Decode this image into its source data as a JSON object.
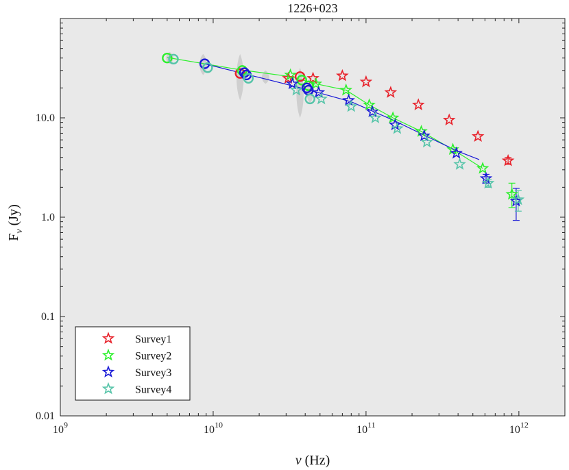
{
  "chart_data": {
    "type": "scatter",
    "title": "1226+023",
    "xlabel": "ν (Hz)",
    "ylabel": "Fν (Jy)",
    "xscale": "log",
    "yscale": "log",
    "xlim": [
      1000000000.0,
      2000000000000.0
    ],
    "ylim": [
      0.01,
      100
    ],
    "x_ticks": [
      {
        "value": 1000000000.0,
        "base": "10",
        "exp": "9"
      },
      {
        "value": 10000000000.0,
        "base": "10",
        "exp": "10"
      },
      {
        "value": 100000000000.0,
        "base": "10",
        "exp": "11"
      },
      {
        "value": 1000000000000.0,
        "base": "10",
        "exp": "12"
      }
    ],
    "y_ticks": [
      {
        "value": 0.01,
        "label": "0.01"
      },
      {
        "value": 0.1,
        "label": "0.1"
      },
      {
        "value": 1,
        "label": "1.0"
      },
      {
        "value": 10,
        "label": "10.0"
      }
    ],
    "legend_position": "bottom-left",
    "colors": {
      "Survey1": "#e8212a",
      "Survey2": "#2cf02c",
      "Survey3": "#1a1ad6",
      "Survey4": "#55c4a8",
      "band": "#cfcfcf",
      "plot_bg": "#e9e9e9"
    },
    "variability_bands": [
      {
        "x": 5200000000.0,
        "low": 35,
        "high": 46
      },
      {
        "x": 8600000000.0,
        "low": 27,
        "high": 44
      },
      {
        "x": 15000000000.0,
        "low": 15,
        "high": 44
      },
      {
        "x": 22000000000.0,
        "low": 22,
        "high": 30
      },
      {
        "x": 37000000000.0,
        "low": 10,
        "high": 32
      },
      {
        "x": 43000000000.0,
        "low": 14,
        "high": 25
      }
    ],
    "series": [
      {
        "name": "Survey1",
        "circles": [
          {
            "x": 15000000000.0,
            "y": 28
          },
          {
            "x": 37000000000.0,
            "y": 26
          }
        ],
        "stars": [
          {
            "x": 31000000000.0,
            "y": 25
          },
          {
            "x": 45000000000.0,
            "y": 25
          },
          {
            "x": 70000000000.0,
            "y": 26.5
          },
          {
            "x": 100000000000.0,
            "y": 23
          },
          {
            "x": 145000000000.0,
            "y": 18
          },
          {
            "x": 220000000000.0,
            "y": 13.5
          },
          {
            "x": 350000000000.0,
            "y": 9.5
          },
          {
            "x": 540000000000.0,
            "y": 6.5
          },
          {
            "x": 850000000000.0,
            "y": 3.7,
            "err_low": 3.4,
            "err_high": 4.0
          }
        ],
        "fit": []
      },
      {
        "name": "Survey2",
        "circles": [
          {
            "x": 5000000000.0,
            "y": 40
          },
          {
            "x": 15500000000.0,
            "y": 30
          },
          {
            "x": 38000000000.0,
            "y": 24
          },
          {
            "x": 42000000000.0,
            "y": 21
          }
        ],
        "stars": [
          {
            "x": 32000000000.0,
            "y": 27
          },
          {
            "x": 47000000000.0,
            "y": 22
          },
          {
            "x": 74000000000.0,
            "y": 19
          },
          {
            "x": 105000000000.0,
            "y": 13.5
          },
          {
            "x": 150000000000.0,
            "y": 10
          },
          {
            "x": 230000000000.0,
            "y": 7.3
          },
          {
            "x": 370000000000.0,
            "y": 4.8
          },
          {
            "x": 580000000000.0,
            "y": 3.1
          },
          {
            "x": 900000000000.0,
            "y": 1.7,
            "err_low": 1.25,
            "err_high": 2.2
          }
        ],
        "fit": [
          {
            "x": 5000000000.0,
            "y": 40.5
          },
          {
            "x": 15000000000.0,
            "y": 30.5
          },
          {
            "x": 32000000000.0,
            "y": 26
          },
          {
            "x": 47000000000.0,
            "y": 22
          },
          {
            "x": 74000000000.0,
            "y": 19
          },
          {
            "x": 105000000000.0,
            "y": 13.5
          },
          {
            "x": 150000000000.0,
            "y": 10
          },
          {
            "x": 230000000000.0,
            "y": 7.3
          },
          {
            "x": 370000000000.0,
            "y": 4.8
          },
          {
            "x": 580000000000.0,
            "y": 3.1
          }
        ]
      },
      {
        "name": "Survey3",
        "circles": [
          {
            "x": 8800000000.0,
            "y": 35
          },
          {
            "x": 16000000000.0,
            "y": 28.5
          },
          {
            "x": 16500000000.0,
            "y": 27
          },
          {
            "x": 41000000000.0,
            "y": 20
          },
          {
            "x": 42000000000.0,
            "y": 19
          }
        ],
        "stars": [
          {
            "x": 33000000000.0,
            "y": 22
          },
          {
            "x": 49000000000.0,
            "y": 18
          },
          {
            "x": 77000000000.0,
            "y": 15
          },
          {
            "x": 110000000000.0,
            "y": 11.5
          },
          {
            "x": 155000000000.0,
            "y": 8.5
          },
          {
            "x": 240000000000.0,
            "y": 6.6
          },
          {
            "x": 390000000000.0,
            "y": 4.4
          },
          {
            "x": 610000000000.0,
            "y": 2.45,
            "err_low": 2.2,
            "err_high": 2.7
          },
          {
            "x": 960000000000.0,
            "y": 1.45,
            "err_low": 0.93,
            "err_high": 1.95
          }
        ],
        "fit": [
          {
            "x": 8800000000.0,
            "y": 35
          },
          {
            "x": 20000000000.0,
            "y": 25.5
          },
          {
            "x": 40000000000.0,
            "y": 19.5
          },
          {
            "x": 80000000000.0,
            "y": 14.5
          },
          {
            "x": 150000000000.0,
            "y": 9.5
          },
          {
            "x": 250000000000.0,
            "y": 6.5
          },
          {
            "x": 400000000000.0,
            "y": 4.6
          },
          {
            "x": 550000000000.0,
            "y": 3.8
          }
        ]
      },
      {
        "name": "Survey4",
        "circles": [
          {
            "x": 5500000000.0,
            "y": 39
          },
          {
            "x": 9200000000.0,
            "y": 32
          },
          {
            "x": 17000000000.0,
            "y": 25
          },
          {
            "x": 43000000000.0,
            "y": 15.5
          }
        ],
        "stars": [
          {
            "x": 35000000000.0,
            "y": 19
          },
          {
            "x": 51000000000.0,
            "y": 15.5
          },
          {
            "x": 80000000000.0,
            "y": 13
          },
          {
            "x": 115000000000.0,
            "y": 10
          },
          {
            "x": 160000000000.0,
            "y": 7.8
          },
          {
            "x": 250000000000.0,
            "y": 5.7
          },
          {
            "x": 410000000000.0,
            "y": 3.4
          },
          {
            "x": 630000000000.0,
            "y": 2.2,
            "err_low": 2.0,
            "err_high": 2.4
          },
          {
            "x": 990000000000.0,
            "y": 1.5,
            "err_low": 1.15,
            "err_high": 1.85
          }
        ],
        "fit": []
      }
    ]
  }
}
